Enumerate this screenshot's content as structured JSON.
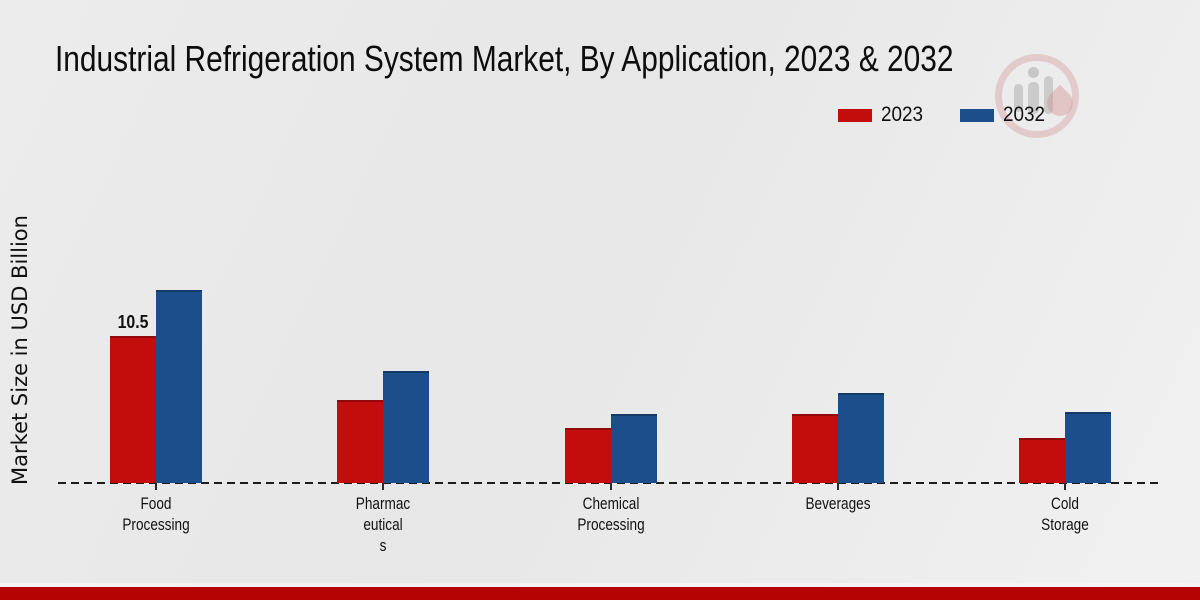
{
  "title": "Industrial Refrigeration System Market, By Application, 2023 & 2032",
  "y_axis_label": "Market Size in USD Billion",
  "legend": [
    {
      "label": "2023",
      "color": "#c30d0d"
    },
    {
      "label": "2032",
      "color": "#1b4e8a"
    }
  ],
  "watermark": "market-research-future-logo",
  "footer": {
    "band_color": "#b50303"
  },
  "chart_data": {
    "type": "bar",
    "title": "Industrial Refrigeration System Market, By Application, 2023 & 2032",
    "xlabel": "",
    "ylabel": "Market Size in USD Billion",
    "ylim": [
      0,
      14
    ],
    "grid": false,
    "legend_position": "top-right",
    "baseline_style": "dashed",
    "categories": [
      "Food Processing",
      "Pharmaceuticals",
      "Chemical Processing",
      "Beverages",
      "Cold Storage"
    ],
    "category_label_lines": [
      [
        "Food",
        "Processing"
      ],
      [
        "Pharmac",
        "eutical",
        "s"
      ],
      [
        "Chemical",
        "Processing"
      ],
      [
        "Beverages"
      ],
      [
        "Cold",
        "Storage"
      ]
    ],
    "series": [
      {
        "name": "2023",
        "color": "#c30d0d",
        "values": [
          10.5,
          5.9,
          3.9,
          4.9,
          3.2
        ]
      },
      {
        "name": "2032",
        "color": "#1b4e8a",
        "values": [
          13.8,
          8.0,
          4.9,
          6.4,
          5.1
        ]
      }
    ],
    "bar_labels": [
      {
        "category": "Food Processing",
        "series": "2023",
        "text": "10.5"
      }
    ]
  }
}
